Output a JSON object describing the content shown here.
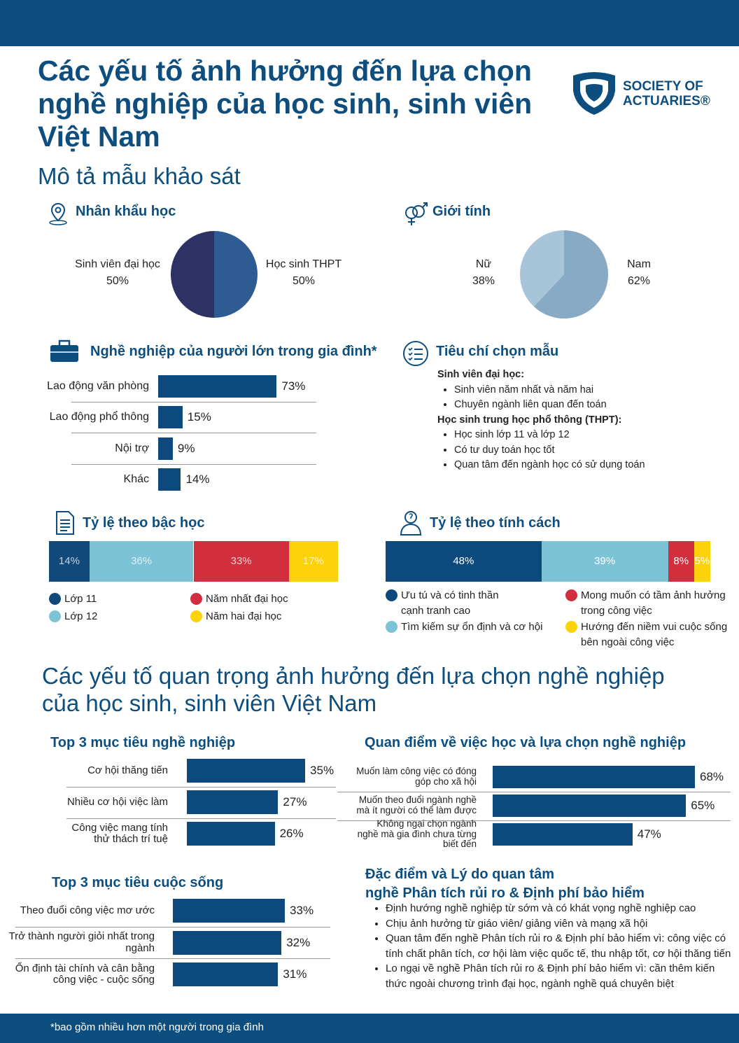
{
  "header": {
    "title": [
      "Các yếu tố ảnh hưởng đến lựa chọn",
      "nghề nghiệp của học sinh, sinh viên",
      "Việt Nam"
    ],
    "subtitle": "Mô tả mẫu khảo sát",
    "logo": [
      "SOCIETY OF",
      "ACTUARIES®"
    ]
  },
  "chart_data": [
    {
      "type": "pie",
      "title": "Nhân khẩu học",
      "categories": [
        "Sinh viên đại học",
        "Học sinh THPT"
      ],
      "values": [
        50,
        50
      ],
      "value_labels": [
        "50%",
        "50%"
      ],
      "colors": [
        "#2d3163",
        "#2f5b93"
      ]
    },
    {
      "type": "pie",
      "title": "Giới tính",
      "categories": [
        "Nữ",
        "Nam"
      ],
      "values": [
        38,
        62
      ],
      "value_labels": [
        "38%",
        "62%"
      ],
      "colors": [
        "#a8c4d8",
        "#88aac4"
      ]
    },
    {
      "type": "bar",
      "title": "Nghề nghiệp của người lớn trong gia đình*",
      "categories": [
        "Lao động văn phòng",
        "Lao động phổ thông",
        "Nội trợ",
        "Khác"
      ],
      "values": [
        73,
        15,
        9,
        14
      ],
      "value_labels": [
        "73%",
        "15%",
        "9%",
        "14%"
      ],
      "color": "#0c4a7d"
    },
    {
      "type": "stacked-bar",
      "title": "Tỷ lệ theo bậc học",
      "series": [
        {
          "name": "Lớp 11",
          "color": "#11497a",
          "values": [
            14
          ],
          "value_labels": [
            "14%"
          ]
        },
        {
          "name": "Lớp 12",
          "color": "#7cc3d5",
          "values": [
            36
          ],
          "value_labels": [
            "36%"
          ]
        },
        {
          "name": "Năm nhất đại học",
          "color": "#d12e3e",
          "values": [
            33
          ],
          "value_labels": [
            "33%"
          ]
        },
        {
          "name": "Năm hai đại học",
          "color": "#fcd20b",
          "values": [
            17
          ],
          "value_labels": [
            "17%"
          ]
        }
      ]
    },
    {
      "type": "stacked-bar",
      "title": "Tỷ lệ theo tính cách",
      "series": [
        {
          "name": "Ưu tú và có tinh thần cạnh tranh cao",
          "color": "#0c4a7d",
          "values": [
            48
          ],
          "value_labels": [
            "48%"
          ]
        },
        {
          "name": "Tìm kiếm sự ổn định và cơ hội",
          "color": "#7cc3d5",
          "values": [
            39
          ],
          "value_labels": [
            "39%"
          ]
        },
        {
          "name": "Mong muốn có tầm ảnh hưởng trong công việc",
          "color": "#d12e3e",
          "values": [
            8
          ],
          "value_labels": [
            "8%"
          ]
        },
        {
          "name": "Hướng đến niềm vui cuộc sống bên ngoài công việc",
          "color": "#fcd20b",
          "values": [
            5
          ],
          "value_labels": [
            "5%"
          ]
        }
      ]
    },
    {
      "type": "bar",
      "title": "Top 3 mục tiêu nghề nghiệp",
      "categories": [
        "Cơ hội thăng tiến",
        "Nhiều cơ hội việc làm",
        "Công việc mang tính thử thách trí tuệ"
      ],
      "values": [
        35,
        27,
        26
      ],
      "value_labels": [
        "35%",
        "27%",
        "26%"
      ],
      "color": "#0c4a7d"
    },
    {
      "type": "bar",
      "title": "Quan điểm về việc học và lựa chọn nghề nghiệp",
      "categories": [
        "Muốn làm công việc có đóng góp cho xã hội",
        "Muốn theo đuổi ngành nghề mà ít người có thể làm được",
        "Không ngại chọn ngành nghề mà gia đình chưa từng biết đến"
      ],
      "values": [
        68,
        65,
        47
      ],
      "value_labels": [
        "68%",
        "65%",
        "47%"
      ],
      "color": "#0c4a7d"
    },
    {
      "type": "bar",
      "title": "Top 3 mục tiêu cuộc sống",
      "categories": [
        "Theo đuổi công việc mơ ước",
        "Trở thành người giỏi nhất trong ngành",
        "Ổn định tài chính và cân bằng công việc - cuộc sống"
      ],
      "values": [
        33,
        32,
        31
      ],
      "value_labels": [
        "33%",
        "32%",
        "31%"
      ],
      "color": "#0c4a7d"
    }
  ],
  "criteria": {
    "title": "Tiêu chí chọn mẫu",
    "groups": [
      {
        "heading": "Sinh viên đại học:",
        "items": [
          "Sinh viên năm nhất và năm hai",
          "Chuyên ngành liên quan đến toán"
        ]
      },
      {
        "heading": "Học sinh trung học phổ thông (THPT):",
        "items": [
          "Học sinh lớp 11 và lớp 12",
          "Có tư duy toán học tốt",
          "Quan tâm đến ngành học có sử dụng toán"
        ]
      }
    ]
  },
  "section2": {
    "title": [
      "Các yếu tố quan trọng ảnh hưởng đến lựa chọn nghề nghiệp",
      "của học sinh, sinh viên Việt Nam"
    ]
  },
  "insurance": {
    "title": [
      "Đặc điểm và Lý do quan tâm",
      "nghề Phân tích rủi ro & Định phí bảo hiểm"
    ],
    "items": [
      "Định hướng nghề nghiệp từ sớm và có khát vọng nghề nghiệp cao",
      "Chịu ảnh hưởng từ giáo viên/ giảng viên và mạng xã hội",
      "Quan tâm đến nghề Phân tích rủi ro & Định phí bảo hiểm vì: công việc có tính chất phân tích, cơ hội làm việc quốc tế, thu nhập tốt, cơ hội thăng tiến",
      "Lo ngại về nghề Phân tích rủi ro & Định phí bảo hiểm vì: cần thêm kiến thức ngoài chương trình đại học, ngành nghề quá chuyên biệt"
    ]
  },
  "footnote": "*bao gồm nhiều hơn một người trong gia đình"
}
